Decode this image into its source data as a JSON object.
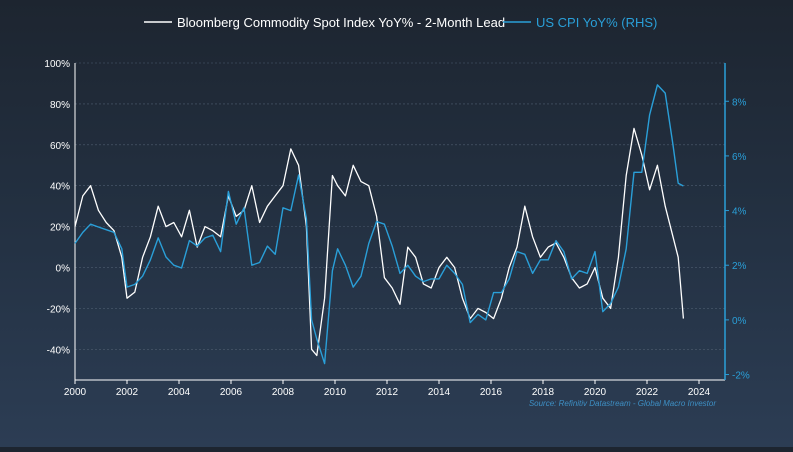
{
  "chart_data": {
    "type": "line",
    "title": "",
    "xlabel": "",
    "ylabel": "",
    "source": "Source: Refinitiv Datastream - Global Macro Investor",
    "legend_position": "top-center",
    "grid": true,
    "x_range": [
      2000.0,
      2025.0
    ],
    "y_left": {
      "range": [
        -55,
        100
      ],
      "ticks": [
        100,
        80,
        60,
        40,
        20,
        0,
        -20,
        -40
      ],
      "tick_labels": [
        "100%",
        "80%",
        "60%",
        "40%",
        "20%",
        "0%",
        "-20%",
        "-40%"
      ]
    },
    "y_right": {
      "range": [
        -2.2,
        9.4
      ],
      "ticks": [
        8,
        6,
        4,
        2,
        0,
        -2
      ],
      "tick_labels": [
        "8%",
        "6%",
        "4%",
        "2%",
        "0%",
        "-2%"
      ]
    },
    "x_ticks": [
      2000,
      2002,
      2004,
      2006,
      2008,
      2010,
      2012,
      2014,
      2016,
      2018,
      2020,
      2022,
      2024
    ],
    "x_tick_labels": [
      "2000",
      "2002",
      "2004",
      "2006",
      "2008",
      "2010",
      "2012",
      "2014",
      "2016",
      "2018",
      "2020",
      "2022",
      "2024"
    ],
    "series": [
      {
        "name": "Bloomberg Commodity Spot Index YoY% - 2-Month Lead",
        "axis": "left",
        "color": "#ffffff",
        "x": [
          2000.0,
          2000.3,
          2000.6,
          2000.9,
          2001.2,
          2001.5,
          2001.8,
          2002.0,
          2002.3,
          2002.6,
          2002.9,
          2003.2,
          2003.5,
          2003.8,
          2004.1,
          2004.4,
          2004.7,
          2005.0,
          2005.3,
          2005.6,
          2005.9,
          2006.2,
          2006.5,
          2006.8,
          2007.1,
          2007.4,
          2007.7,
          2008.0,
          2008.3,
          2008.6,
          2008.9,
          2009.1,
          2009.3,
          2009.6,
          2009.9,
          2010.1,
          2010.4,
          2010.7,
          2011.0,
          2011.3,
          2011.6,
          2011.9,
          2012.2,
          2012.5,
          2012.8,
          2013.1,
          2013.4,
          2013.7,
          2014.0,
          2014.3,
          2014.6,
          2014.9,
          2015.2,
          2015.5,
          2015.8,
          2016.1,
          2016.4,
          2016.7,
          2017.0,
          2017.3,
          2017.6,
          2017.9,
          2018.2,
          2018.5,
          2018.8,
          2019.1,
          2019.4,
          2019.7,
          2020.0,
          2020.3,
          2020.6,
          2020.9,
          2021.2,
          2021.5,
          2021.8,
          2022.1,
          2022.4,
          2022.7,
          2023.0,
          2023.2,
          2023.4
        ],
        "values": [
          20,
          35,
          40,
          28,
          22,
          18,
          5,
          -15,
          -12,
          5,
          15,
          30,
          20,
          22,
          15,
          28,
          10,
          20,
          18,
          15,
          35,
          25,
          28,
          40,
          22,
          30,
          35,
          40,
          58,
          50,
          20,
          -40,
          -43,
          -15,
          45,
          40,
          35,
          50,
          42,
          40,
          25,
          -5,
          -10,
          -18,
          10,
          5,
          -8,
          -10,
          0,
          5,
          0,
          -15,
          -25,
          -20,
          -22,
          -25,
          -15,
          0,
          10,
          30,
          15,
          5,
          10,
          12,
          5,
          -5,
          -10,
          -8,
          0,
          -15,
          -20,
          5,
          45,
          68,
          55,
          38,
          50,
          30,
          15,
          5,
          -25
        ]
      },
      {
        "name": "US CPI YoY% (RHS)",
        "axis": "right",
        "color": "#2a9fd8",
        "x": [
          2000.0,
          2000.3,
          2000.6,
          2000.9,
          2001.2,
          2001.5,
          2001.8,
          2002.0,
          2002.3,
          2002.6,
          2002.9,
          2003.2,
          2003.5,
          2003.8,
          2004.1,
          2004.4,
          2004.7,
          2005.0,
          2005.3,
          2005.6,
          2005.9,
          2006.2,
          2006.5,
          2006.8,
          2007.1,
          2007.4,
          2007.7,
          2008.0,
          2008.3,
          2008.6,
          2008.9,
          2009.1,
          2009.3,
          2009.6,
          2009.9,
          2010.1,
          2010.4,
          2010.7,
          2011.0,
          2011.3,
          2011.6,
          2011.9,
          2012.2,
          2012.5,
          2012.8,
          2013.1,
          2013.4,
          2013.7,
          2014.0,
          2014.3,
          2014.6,
          2014.9,
          2015.2,
          2015.5,
          2015.8,
          2016.1,
          2016.4,
          2016.7,
          2017.0,
          2017.3,
          2017.6,
          2017.9,
          2018.2,
          2018.5,
          2018.8,
          2019.1,
          2019.4,
          2019.7,
          2020.0,
          2020.3,
          2020.6,
          2020.9,
          2021.2,
          2021.5,
          2021.8,
          2022.1,
          2022.4,
          2022.7,
          2023.0,
          2023.2,
          2023.4
        ],
        "values": [
          2.8,
          3.2,
          3.5,
          3.4,
          3.3,
          3.2,
          2.6,
          1.2,
          1.3,
          1.6,
          2.2,
          3.0,
          2.3,
          2.0,
          1.9,
          2.9,
          2.7,
          3.0,
          3.1,
          2.5,
          4.7,
          3.5,
          4.1,
          2.0,
          2.1,
          2.7,
          2.4,
          4.1,
          4.0,
          5.3,
          3.7,
          0.0,
          -0.7,
          -1.6,
          1.8,
          2.6,
          2.0,
          1.2,
          1.6,
          2.8,
          3.6,
          3.5,
          2.7,
          1.7,
          2.0,
          1.6,
          1.4,
          1.5,
          1.5,
          2.0,
          1.7,
          1.3,
          -0.1,
          0.2,
          0.0,
          1.0,
          1.0,
          1.5,
          2.5,
          2.4,
          1.7,
          2.2,
          2.2,
          2.9,
          2.5,
          1.5,
          1.8,
          1.7,
          2.5,
          0.3,
          0.6,
          1.2,
          2.6,
          5.4,
          5.4,
          7.5,
          8.6,
          8.3,
          6.4,
          5.0,
          4.9
        ]
      }
    ]
  }
}
